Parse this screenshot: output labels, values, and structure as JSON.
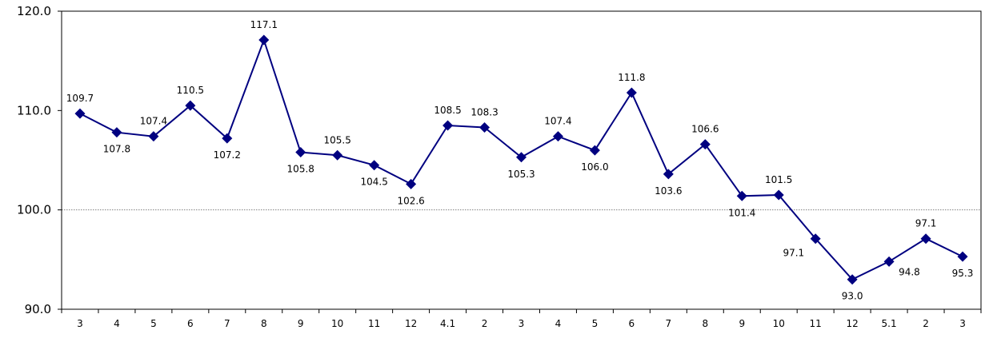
{
  "chart_data": {
    "type": "line",
    "categories": [
      "3",
      "4",
      "5",
      "6",
      "7",
      "8",
      "9",
      "10",
      "11",
      "12",
      "4.1",
      "2",
      "3",
      "4",
      "5",
      "6",
      "7",
      "8",
      "9",
      "10",
      "11",
      "12",
      "5.1",
      "2",
      "3"
    ],
    "series": [
      {
        "values": [
          109.7,
          107.8,
          107.4,
          110.5,
          107.2,
          117.1,
          105.8,
          105.5,
          104.5,
          102.6,
          108.5,
          108.3,
          105.3,
          107.4,
          106.0,
          111.8,
          103.6,
          106.6,
          101.4,
          101.5,
          97.1,
          93.0,
          94.8,
          97.1,
          95.3
        ],
        "labels": [
          "109.7",
          "107.8",
          "107.4",
          "110.5",
          "107.2",
          "117.1",
          "105.8",
          "105.5",
          "104.5",
          "102.6",
          "108.5",
          "108.3",
          "105.3",
          "107.4",
          "106.0",
          "111.8",
          "103.6",
          "106.6",
          "101.4",
          "101.5",
          "97.1",
          "93.0",
          "94.8",
          "97.1",
          "95.3"
        ],
        "label_positions": [
          "above",
          "below",
          "above",
          "above",
          "below",
          "above",
          "below",
          "above",
          "below",
          "below",
          "above",
          "above",
          "below",
          "above",
          "below",
          "above",
          "below",
          "above",
          "below",
          "above",
          "left",
          "below",
          "right",
          "above",
          "below"
        ]
      }
    ],
    "ylim": [
      90,
      120
    ],
    "yticks": [
      "90.0",
      "100.0",
      "110.0",
      "120.0"
    ],
    "reference_line": 100,
    "grid": false,
    "title": "",
    "xlabel": "",
    "ylabel": "",
    "colors": {
      "line": "#000080",
      "marker": "#000080",
      "reference": "#808080",
      "axis": "#000000"
    }
  }
}
